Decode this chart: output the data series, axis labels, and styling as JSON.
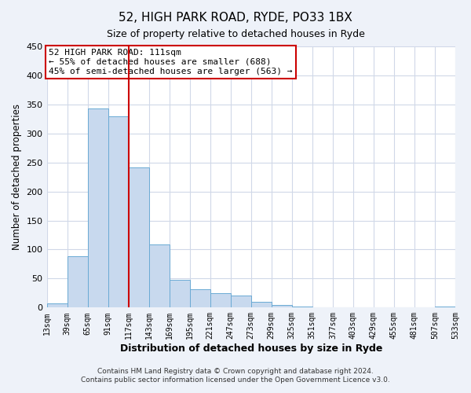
{
  "title": "52, HIGH PARK ROAD, RYDE, PO33 1BX",
  "subtitle": "Size of property relative to detached houses in Ryde",
  "xlabel": "Distribution of detached houses by size in Ryde",
  "ylabel": "Number of detached properties",
  "bin_labels": [
    "13sqm",
    "39sqm",
    "65sqm",
    "91sqm",
    "117sqm",
    "143sqm",
    "169sqm",
    "195sqm",
    "221sqm",
    "247sqm",
    "273sqm",
    "299sqm",
    "325sqm",
    "351sqm",
    "377sqm",
    "403sqm",
    "429sqm",
    "455sqm",
    "481sqm",
    "507sqm",
    "533sqm"
  ],
  "bin_values": [
    7,
    89,
    343,
    330,
    242,
    109,
    48,
    32,
    25,
    21,
    10,
    5,
    2,
    0,
    0,
    0,
    0,
    0,
    0,
    2
  ],
  "bar_color": "#c8d9ee",
  "bar_edge_color": "#6aaad4",
  "vline_color": "#cc0000",
  "vline_x_index": 4,
  "annotation_title": "52 HIGH PARK ROAD: 111sqm",
  "annotation_line1": "← 55% of detached houses are smaller (688)",
  "annotation_line2": "45% of semi-detached houses are larger (563) →",
  "annotation_box_color": "#cc0000",
  "ylim": [
    0,
    450
  ],
  "yticks": [
    0,
    50,
    100,
    150,
    200,
    250,
    300,
    350,
    400,
    450
  ],
  "footnote1": "Contains HM Land Registry data © Crown copyright and database right 2024.",
  "footnote2": "Contains public sector information licensed under the Open Government Licence v3.0.",
  "background_color": "#eef2f9",
  "grid_color": "#d0d8e8",
  "grid_bg": "#ffffff"
}
